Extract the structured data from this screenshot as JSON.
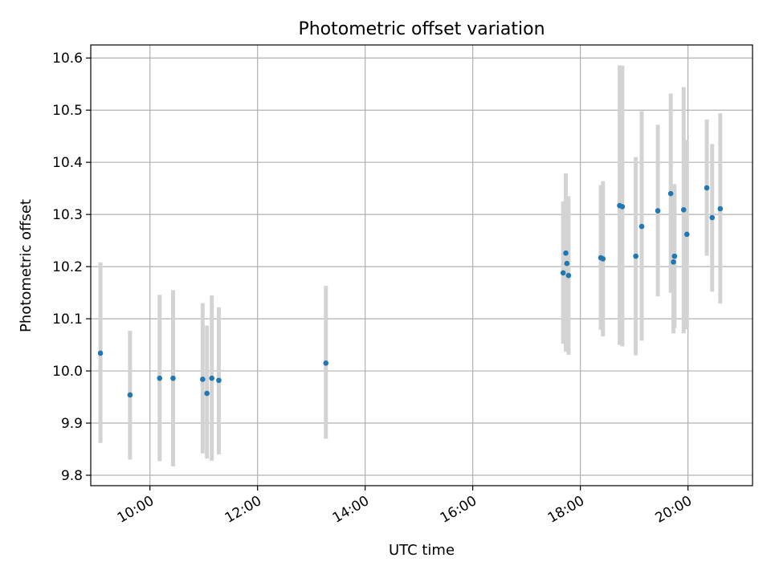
{
  "chart_data": {
    "type": "scatter",
    "title": "Photometric offset variation",
    "xlabel": "UTC time",
    "ylabel": "Photometric offset",
    "x_unit": "hours UTC",
    "xlim": [
      8.9,
      21.2
    ],
    "ylim": [
      9.78,
      10.625
    ],
    "xticks": [
      {
        "value": 10,
        "label": "10:00"
      },
      {
        "value": 12,
        "label": "12:00"
      },
      {
        "value": 14,
        "label": "14:00"
      },
      {
        "value": 16,
        "label": "16:00"
      },
      {
        "value": 18,
        "label": "18:00"
      },
      {
        "value": 20,
        "label": "20:00"
      }
    ],
    "yticks": [
      {
        "value": 9.8,
        "label": "9.8"
      },
      {
        "value": 9.9,
        "label": "9.9"
      },
      {
        "value": 10.0,
        "label": "10.0"
      },
      {
        "value": 10.1,
        "label": "10.1"
      },
      {
        "value": 10.2,
        "label": "10.2"
      },
      {
        "value": 10.3,
        "label": "10.3"
      },
      {
        "value": 10.4,
        "label": "10.4"
      },
      {
        "value": 10.5,
        "label": "10.5"
      },
      {
        "value": 10.6,
        "label": "10.6"
      }
    ],
    "grid": true,
    "colors": {
      "point": "#1f77b4",
      "errorbar": "#d3d3d3"
    },
    "series": [
      {
        "points": [
          {
            "x": 9.08,
            "y": 10.034,
            "ylo": 9.862,
            "yhi": 10.208
          },
          {
            "x": 9.63,
            "y": 9.954,
            "ylo": 9.83,
            "yhi": 10.077
          },
          {
            "x": 10.18,
            "y": 9.986,
            "ylo": 9.827,
            "yhi": 10.146
          },
          {
            "x": 10.43,
            "y": 9.986,
            "ylo": 9.817,
            "yhi": 10.155
          },
          {
            "x": 10.98,
            "y": 9.984,
            "ylo": 9.842,
            "yhi": 10.13
          },
          {
            "x": 11.06,
            "y": 9.957,
            "ylo": 9.832,
            "yhi": 10.087
          },
          {
            "x": 11.15,
            "y": 9.986,
            "ylo": 9.828,
            "yhi": 10.145
          },
          {
            "x": 11.28,
            "y": 9.982,
            "ylo": 9.84,
            "yhi": 10.122
          },
          {
            "x": 13.27,
            "y": 10.015,
            "ylo": 9.87,
            "yhi": 10.163
          },
          {
            "x": 17.68,
            "y": 10.188,
            "ylo": 10.052,
            "yhi": 10.325
          },
          {
            "x": 17.73,
            "y": 10.226,
            "ylo": 10.037,
            "yhi": 10.379
          },
          {
            "x": 17.75,
            "y": 10.206,
            "ylo": 10.04,
            "yhi": 10.325
          },
          {
            "x": 17.78,
            "y": 10.183,
            "ylo": 10.031,
            "yhi": 10.335
          },
          {
            "x": 18.38,
            "y": 10.217,
            "ylo": 10.079,
            "yhi": 10.356
          },
          {
            "x": 18.42,
            "y": 10.215,
            "ylo": 10.066,
            "yhi": 10.364
          },
          {
            "x": 18.73,
            "y": 10.317,
            "ylo": 10.05,
            "yhi": 10.586
          },
          {
            "x": 18.78,
            "y": 10.315,
            "ylo": 10.047,
            "yhi": 10.585
          },
          {
            "x": 19.03,
            "y": 10.22,
            "ylo": 10.03,
            "yhi": 10.41
          },
          {
            "x": 19.14,
            "y": 10.277,
            "ylo": 10.058,
            "yhi": 10.498
          },
          {
            "x": 19.44,
            "y": 10.307,
            "ylo": 10.143,
            "yhi": 10.472
          },
          {
            "x": 19.68,
            "y": 10.34,
            "ylo": 10.15,
            "yhi": 10.532
          },
          {
            "x": 19.73,
            "y": 10.209,
            "ylo": 10.072,
            "yhi": 10.346
          },
          {
            "x": 19.75,
            "y": 10.22,
            "ylo": 10.082,
            "yhi": 10.358
          },
          {
            "x": 19.92,
            "y": 10.309,
            "ylo": 10.072,
            "yhi": 10.544
          },
          {
            "x": 19.98,
            "y": 10.262,
            "ylo": 10.08,
            "yhi": 10.443
          },
          {
            "x": 20.35,
            "y": 10.351,
            "ylo": 10.221,
            "yhi": 10.482
          },
          {
            "x": 20.45,
            "y": 10.294,
            "ylo": 10.152,
            "yhi": 10.435
          },
          {
            "x": 20.6,
            "y": 10.311,
            "ylo": 10.129,
            "yhi": 10.494
          }
        ]
      }
    ]
  }
}
